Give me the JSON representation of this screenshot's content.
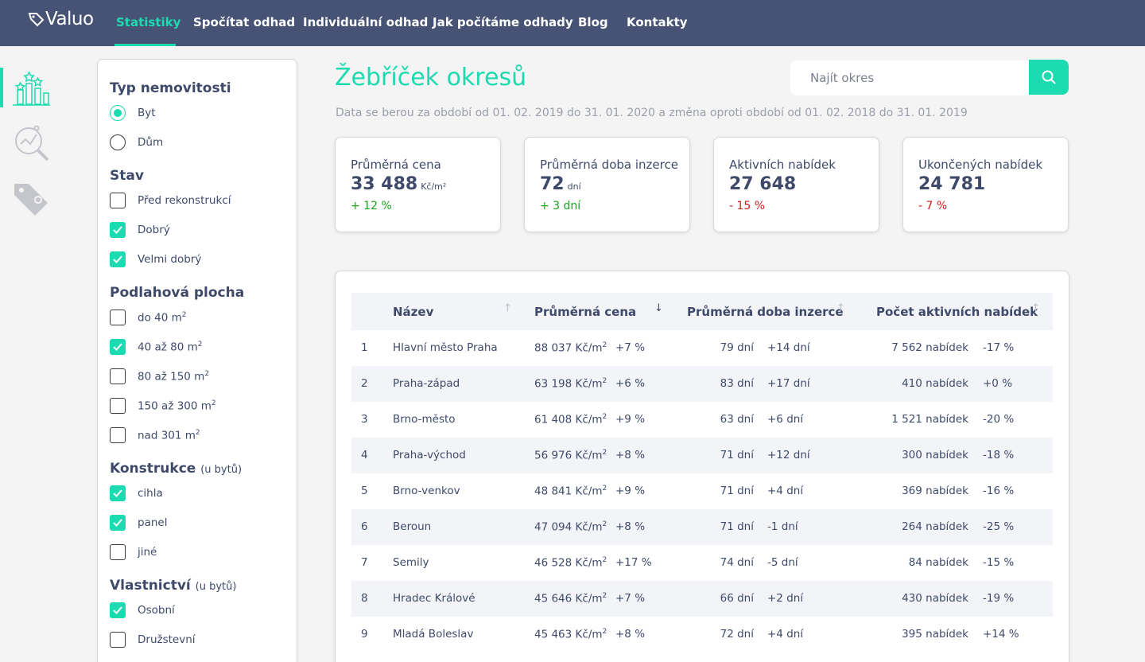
{
  "nav": {
    "logo": "Valuo",
    "items": [
      "Statistiky",
      "Spočítat odhad",
      "Individuální odhad",
      "Jak počítáme odhady",
      "Blog",
      "Kontakty"
    ],
    "active": "Statistiky"
  },
  "rail": {
    "icons": [
      "ranking-chart-icon",
      "market-search-icon",
      "price-tag-icon"
    ]
  },
  "filters": {
    "property_type": {
      "title": "Typ nemovitosti",
      "options": [
        {
          "label": "Byt",
          "checked": true
        },
        {
          "label": "Dům",
          "checked": false
        }
      ]
    },
    "condition": {
      "title": "Stav",
      "options": [
        {
          "label": "Před rekonstrukcí",
          "checked": false
        },
        {
          "label": "Dobrý",
          "checked": true
        },
        {
          "label": "Velmi dobrý",
          "checked": true
        }
      ]
    },
    "area": {
      "title": "Podlahová plocha",
      "unit_sup": "2",
      "options": [
        {
          "label": "do 40 m",
          "checked": false
        },
        {
          "label": "40 až 80 m",
          "checked": true
        },
        {
          "label": "80 až 150 m",
          "checked": false
        },
        {
          "label": "150 až 300 m",
          "checked": false
        },
        {
          "label": "nad 301 m",
          "checked": false
        }
      ]
    },
    "construction": {
      "title": "Konstrukce",
      "note": "(u bytů)",
      "options": [
        {
          "label": "cihla",
          "checked": true
        },
        {
          "label": "panel",
          "checked": true
        },
        {
          "label": "jiné",
          "checked": false
        }
      ]
    },
    "ownership": {
      "title": "Vlastnictví",
      "note": "(u bytů)",
      "options": [
        {
          "label": "Osobní",
          "checked": true
        },
        {
          "label": "Družstevní",
          "checked": false
        }
      ]
    }
  },
  "main": {
    "title": "Žebříček okresů",
    "subtitle": "Data se berou za období od 01. 02. 2019 do 31. 01. 2020 a změna oproti období od 01. 02. 2018 do 31. 01. 2019",
    "search_placeholder": "Najít okres"
  },
  "stats": [
    {
      "label": "Průměrná cena",
      "value": "33 488",
      "unit": "Kč/m²",
      "change": "+ 12 %",
      "trend": "pos"
    },
    {
      "label": "Průměrná doba inzerce",
      "value": "72",
      "unit": "dní",
      "change": "+ 3 dní",
      "trend": "pos"
    },
    {
      "label": "Aktivních nabídek",
      "value": "27 648",
      "unit": "",
      "change": "- 15 %",
      "trend": "neg"
    },
    {
      "label": "Ukončených nabídek",
      "value": "24 781",
      "unit": "",
      "change": "- 7 %",
      "trend": "neg"
    }
  ],
  "table": {
    "columns": [
      "Název",
      "Průměrná cena",
      "Průměrná doba inzerce",
      "Počet aktivních nabídek"
    ],
    "sorted_column": "Průměrná cena",
    "price_unit": "Kč/m",
    "rows": [
      {
        "rank": "1",
        "name": "Hlavní město Praha",
        "price": "88 037",
        "price_change": "+7 %",
        "days": "79 dní",
        "days_change": "+14 dní",
        "offers": "7 562 nabídek",
        "offers_change": "-17 %"
      },
      {
        "rank": "2",
        "name": "Praha-západ",
        "price": "63 198",
        "price_change": "+6 %",
        "days": "83 dní",
        "days_change": "+17 dní",
        "offers": "410 nabídek",
        "offers_change": "+0 %"
      },
      {
        "rank": "3",
        "name": "Brno-město",
        "price": "61 408",
        "price_change": "+9 %",
        "days": "63 dní",
        "days_change": "+6 dní",
        "offers": "1 521 nabídek",
        "offers_change": "-20 %"
      },
      {
        "rank": "4",
        "name": "Praha-východ",
        "price": "56 976",
        "price_change": "+8 %",
        "days": "71 dní",
        "days_change": "+12 dní",
        "offers": "300 nabídek",
        "offers_change": "-18 %"
      },
      {
        "rank": "5",
        "name": "Brno-venkov",
        "price": "48 841",
        "price_change": "+9 %",
        "days": "71 dní",
        "days_change": "+4 dní",
        "offers": "369 nabídek",
        "offers_change": "-16 %"
      },
      {
        "rank": "6",
        "name": "Beroun",
        "price": "47 094",
        "price_change": "+8 %",
        "days": "71 dní",
        "days_change": "-1 dní",
        "offers": "264 nabídek",
        "offers_change": "-25 %"
      },
      {
        "rank": "7",
        "name": "Semily",
        "price": "46 528",
        "price_change": "+17 %",
        "days": "74 dní",
        "days_change": "-5 dní",
        "offers": "84 nabídek",
        "offers_change": "-15 %"
      },
      {
        "rank": "8",
        "name": "Hradec Králové",
        "price": "45 646",
        "price_change": "+7 %",
        "days": "66 dní",
        "days_change": "+2 dní",
        "offers": "430 nabídek",
        "offers_change": "-19 %"
      },
      {
        "rank": "9",
        "name": "Mladá Boleslav",
        "price": "45 463",
        "price_change": "+8 %",
        "days": "72 dní",
        "days_change": "+4 dní",
        "offers": "395 nabídek",
        "offers_change": "+14 %"
      }
    ]
  },
  "colors": {
    "accent": "#1ddbb0",
    "nav_bg": "#465374",
    "text": "#3f4a6b",
    "positive": "#1aa51a",
    "negative": "#d81b1b"
  }
}
